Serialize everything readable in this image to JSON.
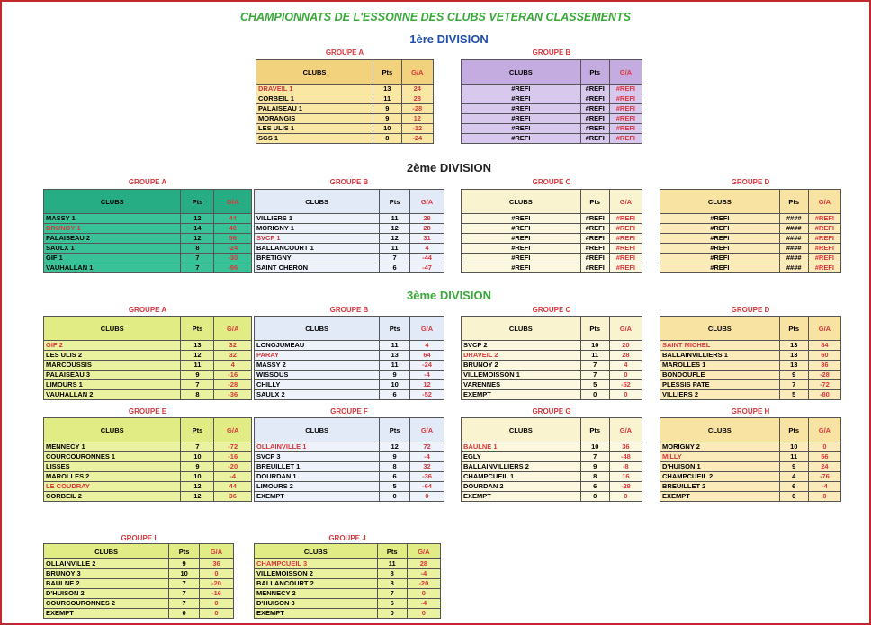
{
  "title": "CHAMPIONNATS DE L'ESSONNE DES CLUBS  VETERAN CLASSEMENTS",
  "divisions": [
    {
      "title": "1ère DIVISION",
      "color": "#1f4fa8",
      "groups": [
        {
          "name": "GROUPE A",
          "header_color": "#f3d27e",
          "body_color": "#fbe7a4",
          "highlight": 0,
          "headers": [
            "CLUBS",
            "Pts",
            "G/A"
          ],
          "rows": [
            [
              "DRAVEIL 1",
              13,
              24
            ],
            [
              "CORBEIL 1",
              11,
              28
            ],
            [
              "PALAISEAU 1",
              9,
              -28
            ],
            [
              "MORANGIS",
              9,
              12
            ],
            [
              "LES ULIS 1",
              10,
              -12
            ],
            [
              "SGS 1",
              8,
              -24
            ]
          ]
        },
        {
          "name": "GROUPE B",
          "header_color": "#c5ace0",
          "body_color": "#d9c8ee",
          "headers": [
            "CLUBS",
            "Pts",
            "G/A"
          ],
          "rows": [
            [
              "#REFI",
              "#REFI",
              "#REFI"
            ],
            [
              "#REFI",
              "#REFI",
              "#REFI"
            ],
            [
              "#REFI",
              "#REFI",
              "#REFI"
            ],
            [
              "#REFI",
              "#REFI",
              "#REFI"
            ],
            [
              "#REFI",
              "#REFI",
              "#REFI"
            ],
            [
              "#REFI",
              "#REFI",
              "#REFI"
            ]
          ]
        }
      ]
    },
    {
      "title": "2ème DIVISION",
      "color": "#222222",
      "groups": [
        {
          "name": "GROUPE A",
          "header_color": "#27ad84",
          "body_color": "#39c297",
          "highlight": 1,
          "headers": [
            "CLUBS",
            "Pts",
            "G/A"
          ],
          "rows": [
            [
              "MASSY 1",
              12,
              44
            ],
            [
              "BRUNOY 1",
              14,
              40
            ],
            [
              "PALAISEAU 2",
              12,
              56
            ],
            [
              "SAULX 1",
              8,
              -24
            ],
            [
              "GIF 1",
              7,
              -30
            ],
            [
              "VAUHALLAN 1",
              7,
              -96
            ]
          ]
        },
        {
          "name": "GROUPE B",
          "header_color": "#e3eaf7",
          "body_color": "#edf2fb",
          "highlight": 2,
          "headers": [
            "CLUBS",
            "Pts",
            "G/A"
          ],
          "rows": [
            [
              "VILLIERS 1",
              11,
              28
            ],
            [
              "MORIGNY 1",
              12,
              28
            ],
            [
              "SVCP 1",
              12,
              31
            ],
            [
              "BALLANCOURT 1",
              11,
              4
            ],
            [
              "BRETIGNY",
              7,
              -44
            ],
            [
              "SAINT CHERON",
              6,
              -47
            ]
          ]
        },
        {
          "name": "GROUPE C",
          "header_color": "#faf3cf",
          "body_color": "#fcf8e0",
          "headers": [
            "CLUBS",
            "Pts",
            "G/A"
          ],
          "rows": [
            [
              "#REFI",
              "#REFI",
              "#REFI"
            ],
            [
              "#REFI",
              "#REFI",
              "#REFI"
            ],
            [
              "#REFI",
              "#REFI",
              "#REFI"
            ],
            [
              "#REFI",
              "#REFI",
              "#REFI"
            ],
            [
              "#REFI",
              "#REFI",
              "#REFI"
            ],
            [
              "#REFI",
              "#REFI",
              "#REFI"
            ]
          ]
        },
        {
          "name": "GROUPE D",
          "header_color": "#f9e3a2",
          "body_color": "#fbebbb",
          "headers": [
            "CLUBS",
            "Pts",
            "G/A"
          ],
          "rows": [
            [
              "#REFI",
              "####",
              "#REFI"
            ],
            [
              "#REFI",
              "####",
              "#REFI"
            ],
            [
              "#REFI",
              "####",
              "#REFI"
            ],
            [
              "#REFI",
              "####",
              "#REFI"
            ],
            [
              "#REFI",
              "####",
              "#REFI"
            ],
            [
              "#REFI",
              "####",
              "#REFI"
            ]
          ]
        }
      ]
    },
    {
      "title": "3ème DIVISION",
      "color": "#3aa83a",
      "groups": [
        {
          "name": "GROUPE A",
          "header_color": "#e2ec84",
          "body_color": "#ebf29f",
          "highlight": 0,
          "headers": [
            "CLUBS",
            "Pts",
            "G/A"
          ],
          "rows": [
            [
              "GIF 2",
              13,
              32
            ],
            [
              "LES ULIS 2",
              12,
              32
            ],
            [
              "MARCOUSSIS",
              11,
              4
            ],
            [
              "PALAISEAU 3",
              9,
              -16
            ],
            [
              "LIMOURS 1",
              7,
              -28
            ],
            [
              "VAUHALLAN 2",
              8,
              -36
            ]
          ]
        },
        {
          "name": "GROUPE B",
          "header_color": "#e3eaf7",
          "body_color": "#edf2fb",
          "highlight": 1,
          "headers": [
            "CLUBS",
            "Pts",
            "G/A"
          ],
          "rows": [
            [
              "LONGJUMEAU",
              11,
              4
            ],
            [
              "PARAY",
              13,
              64
            ],
            [
              "MASSY 2",
              11,
              -24
            ],
            [
              "WISSOUS",
              9,
              -4
            ],
            [
              "CHILLY",
              10,
              12
            ],
            [
              "SAULX 2",
              6,
              -52
            ]
          ]
        },
        {
          "name": "GROUPE C",
          "header_color": "#faf3cf",
          "body_color": "#fcf8e0",
          "highlight": 1,
          "headers": [
            "CLUBS",
            "Pts",
            "G/A"
          ],
          "rows": [
            [
              "SVCP 2",
              10,
              20
            ],
            [
              "DRAVEIL 2",
              11,
              28
            ],
            [
              "BRUNOY 2",
              7,
              4
            ],
            [
              "VILLEMOISSON 1",
              7,
              0
            ],
            [
              "VARENNES",
              5,
              -52
            ],
            [
              "EXEMPT",
              0,
              0
            ]
          ]
        },
        {
          "name": "GROUPE D",
          "header_color": "#f9e3a2",
          "body_color": "#fbebbb",
          "highlight": 0,
          "headers": [
            "CLUBS",
            "Pts",
            "G/A"
          ],
          "rows": [
            [
              "SAINT MICHEL",
              13,
              84
            ],
            [
              "BALLAINVILLIERS 1",
              13,
              60
            ],
            [
              "MAROLLES 1",
              13,
              36
            ],
            [
              "BONDOUFLE",
              9,
              -28
            ],
            [
              "PLESSIS PATE",
              7,
              -72
            ],
            [
              "VILLIERS 2",
              5,
              -80
            ]
          ]
        },
        {
          "name": "GROUPE E",
          "header_color": "#e2ec84",
          "body_color": "#ebf29f",
          "highlight": 4,
          "headers": [
            "CLUBS",
            "Pts",
            "G/A"
          ],
          "rows": [
            [
              "MENNECY 1",
              7,
              -72
            ],
            [
              "COURCOURONNES 1",
              10,
              -16
            ],
            [
              "LISSES",
              9,
              -20
            ],
            [
              "MAROLLES 2",
              10,
              -4
            ],
            [
              "LE COUDRAY",
              12,
              44
            ],
            [
              "CORBEIL 2",
              12,
              36
            ]
          ]
        },
        {
          "name": "GROUPE F",
          "header_color": "#e3eaf7",
          "body_color": "#edf2fb",
          "highlight": 0,
          "headers": [
            "CLUBS",
            "Pts",
            "G/A"
          ],
          "rows": [
            [
              "OLLAINVILLE 1",
              12,
              72
            ],
            [
              "SVCP 3",
              9,
              -4
            ],
            [
              "BREUILLET 1",
              8,
              32
            ],
            [
              "DOURDAN 1",
              6,
              -36
            ],
            [
              "LIMOURS 2",
              5,
              -64
            ],
            [
              "EXEMPT",
              0,
              0
            ]
          ]
        },
        {
          "name": "GROUPE G",
          "header_color": "#faf3cf",
          "body_color": "#fcf8e0",
          "highlight": 0,
          "headers": [
            "CLUBS",
            "Pts",
            "G/A"
          ],
          "rows": [
            [
              "BAULNE 1",
              10,
              36
            ],
            [
              "EGLY",
              7,
              -48
            ],
            [
              "BALLAINVILLIERS 2",
              9,
              -8
            ],
            [
              "CHAMPCUEIL 1",
              8,
              16
            ],
            [
              "DOURDAN 2",
              6,
              -28
            ],
            [
              "EXEMPT",
              0,
              0
            ]
          ]
        },
        {
          "name": "GROUPE H",
          "header_color": "#f9e3a2",
          "body_color": "#fbebbb",
          "highlight": 1,
          "headers": [
            "CLUBS",
            "Pts",
            "G/A"
          ],
          "rows": [
            [
              "MORIGNY 2",
              10,
              0
            ],
            [
              "MILLY",
              11,
              56
            ],
            [
              "D'HUISON 1",
              9,
              24
            ],
            [
              "CHAMPCUEIL 2",
              4,
              -76
            ],
            [
              "BREUILLET 2",
              6,
              -4
            ],
            [
              "EXEMPT",
              0,
              0
            ]
          ]
        },
        {
          "name": "GROUPE I",
          "header_color": "#e2ec84",
          "body_color": "#ebf29f",
          "headers": [
            "CLUBS",
            "Pts",
            "G/A"
          ],
          "rows": [
            [
              "OLLAINVILLE 2",
              9,
              36
            ],
            [
              "BRUNOY 3",
              10,
              0
            ],
            [
              "BAULNE 2",
              7,
              -20
            ],
            [
              "D'HUISON 2",
              7,
              -16
            ],
            [
              "COURCOURONNES 2",
              7,
              0
            ],
            [
              "EXEMPT",
              0,
              0
            ]
          ]
        },
        {
          "name": "GROUPE J",
          "header_color": "#e2ec84",
          "body_color": "#ebf29f",
          "highlight": 0,
          "headers": [
            "CLUBS",
            "Pts",
            "G/A"
          ],
          "rows": [
            [
              "CHAMPCUEIL 3",
              11,
              28
            ],
            [
              "VILLEMOISSON 2",
              8,
              -4
            ],
            [
              "BALLANCOURT 2",
              8,
              -20
            ],
            [
              "MENNECY 2",
              7,
              0
            ],
            [
              "D'HUISON 3",
              6,
              -4
            ],
            [
              "EXEMPT",
              0,
              0
            ]
          ]
        }
      ]
    }
  ]
}
